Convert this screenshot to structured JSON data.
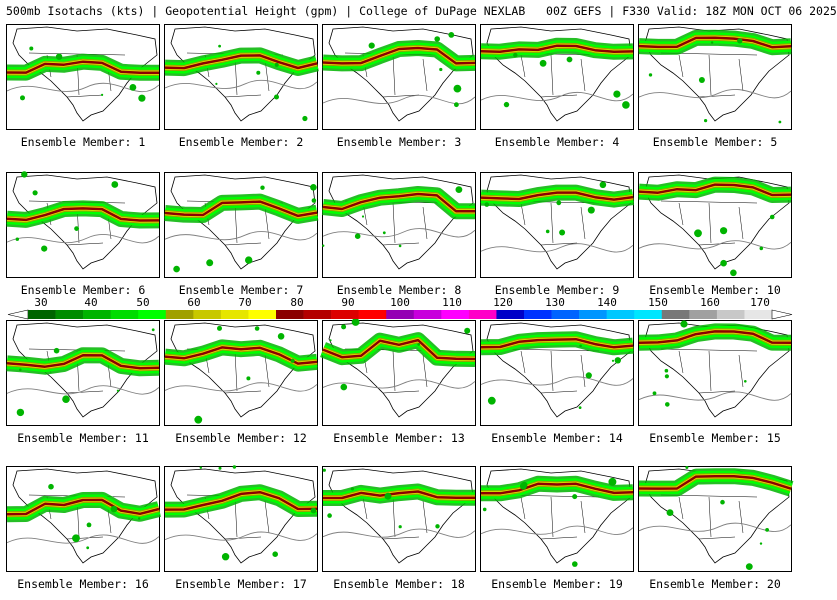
{
  "header": {
    "title": "500mb Isotachs (kts) | Geopotential Height (gpm) | College of DuPage NEXLAB   00Z GEFS | F330 Valid: 18Z MON OCT 06 2025"
  },
  "colorbar": {
    "ticks": [
      "30",
      "40",
      "50",
      "60",
      "70",
      "80",
      "90",
      "100",
      "110",
      "120",
      "130",
      "140",
      "150",
      "160",
      "170"
    ],
    "colors": [
      "#006400",
      "#008c00",
      "#00b400",
      "#00dc00",
      "#00ff00",
      "#a0a000",
      "#c8c800",
      "#e6e600",
      "#ffff00",
      "#8b0000",
      "#b40000",
      "#dc0000",
      "#ff0000",
      "#9400b4",
      "#c800dc",
      "#ff00ff",
      "#ff00c8",
      "#0000c8",
      "#0032ff",
      "#0064ff",
      "#0096ff",
      "#00c8ff",
      "#00e6ff",
      "#787878",
      "#a0a0a0",
      "#c8c8c8",
      "#e6e6e6"
    ]
  },
  "members": [
    {
      "label": "Ensemble Member: 1"
    },
    {
      "label": "Ensemble Member: 2"
    },
    {
      "label": "Ensemble Member: 3"
    },
    {
      "label": "Ensemble Member: 4"
    },
    {
      "label": "Ensemble Member: 5"
    },
    {
      "label": "Ensemble Member: 6"
    },
    {
      "label": "Ensemble Member: 7"
    },
    {
      "label": "Ensemble Member: 8"
    },
    {
      "label": "Ensemble Member: 9"
    },
    {
      "label": "Ensemble Member: 10"
    },
    {
      "label": "Ensemble Member: 11"
    },
    {
      "label": "Ensemble Member: 12"
    },
    {
      "label": "Ensemble Member: 13"
    },
    {
      "label": "Ensemble Member: 14"
    },
    {
      "label": "Ensemble Member: 15"
    },
    {
      "label": "Ensemble Member: 16"
    },
    {
      "label": "Ensemble Member: 17"
    },
    {
      "label": "Ensemble Member: 18"
    },
    {
      "label": "Ensemble Member: 19"
    },
    {
      "label": "Ensemble Member: 20"
    }
  ]
}
